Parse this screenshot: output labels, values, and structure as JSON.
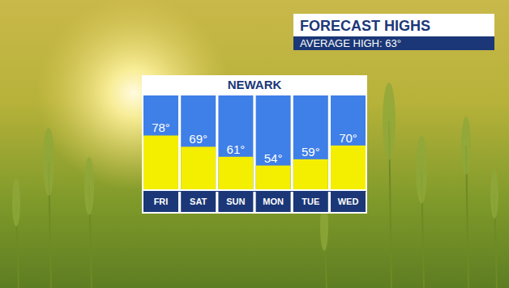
{
  "chart_data": {
    "type": "bar",
    "title": "FORECAST HIGHS",
    "subtitle": "NEWARK",
    "annotations": [
      "AVERAGE HIGH: 63°"
    ],
    "categories": [
      "FRI",
      "SAT",
      "SUN",
      "MON",
      "TUE",
      "WED"
    ],
    "values": [
      78,
      69,
      61,
      54,
      59,
      70
    ],
    "value_labels": [
      "78°",
      "69°",
      "61°",
      "54°",
      "59°",
      "70°"
    ],
    "color": "#f4ee00",
    "ylim": [
      35,
      110
    ],
    "data_labels": true,
    "tick_labels": "x"
  }
}
